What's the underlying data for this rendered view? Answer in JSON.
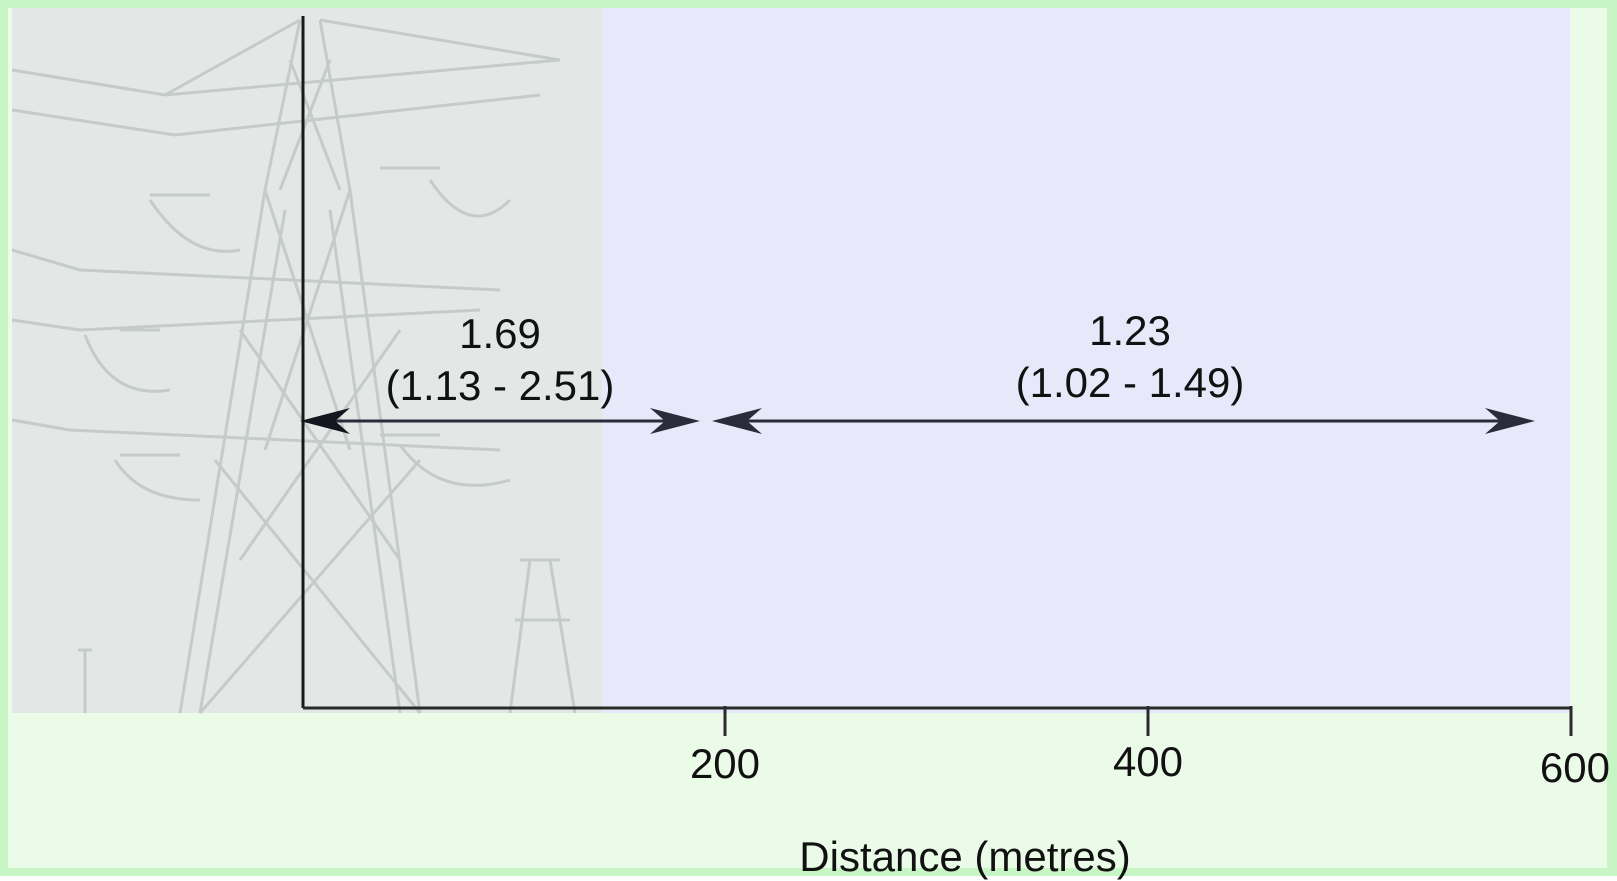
{
  "diagram": {
    "background_photo": "electricity-pylon",
    "colors": {
      "frame": "#c8f5c4",
      "panel": "#e8e8fb",
      "photo": "#e3e8e6",
      "arrow": "#2b2b3c",
      "axis": "#2a2a2a"
    },
    "bands": [
      {
        "value": "1.69",
        "ci": "(1.13 - 2.51)",
        "from_m": 0,
        "to_m": 200
      },
      {
        "value": "1.23",
        "ci": "(1.02 - 1.49)",
        "from_m": 200,
        "to_m": 600
      }
    ],
    "axis": {
      "title": "Distance (metres)",
      "ticks": [
        "200",
        "400",
        "600"
      ]
    }
  }
}
